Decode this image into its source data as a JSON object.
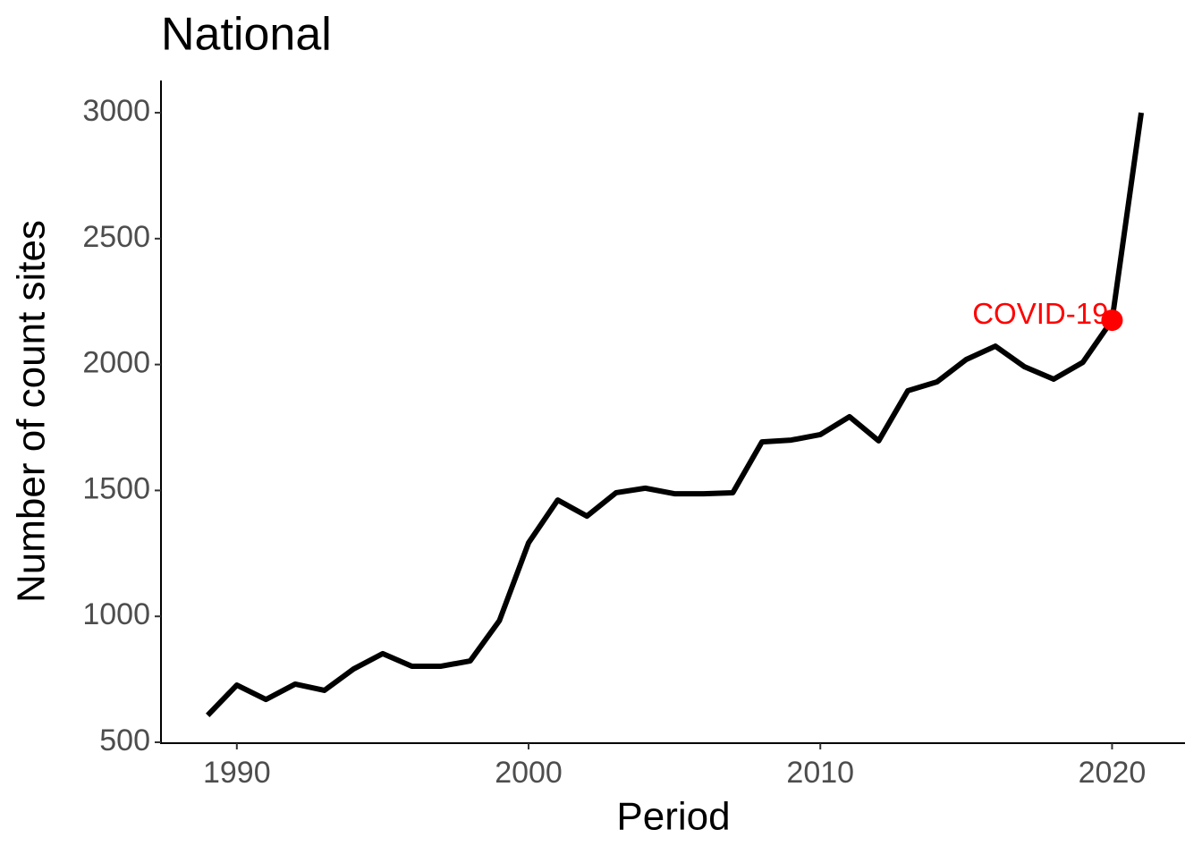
{
  "chart_data": {
    "type": "line",
    "title": "National",
    "x_label": "Period",
    "y_label": "Number of count sites",
    "x": [
      1989,
      1990,
      1991,
      1992,
      1993,
      1994,
      1995,
      1996,
      1997,
      1998,
      1999,
      2000,
      2001,
      2002,
      2003,
      2004,
      2005,
      2006,
      2007,
      2008,
      2009,
      2010,
      2011,
      2012,
      2013,
      2014,
      2015,
      2016,
      2017,
      2018,
      2019,
      2020,
      2021
    ],
    "series": [
      {
        "name": "National",
        "color": "#000000",
        "values": [
          607,
          727,
          670,
          731,
          706,
          791,
          852,
          802,
          802,
          823,
          983,
          1292,
          1462,
          1398,
          1491,
          1509,
          1487,
          1487,
          1491,
          1693,
          1700,
          1722,
          1793,
          1697,
          1896,
          1931,
          2020,
          2073,
          1991,
          1942,
          2009,
          2176,
          3000
        ]
      }
    ],
    "annotation": {
      "text": "COVID-19",
      "x": 2020,
      "y": 2176,
      "color": "#ff0000"
    },
    "xlim": [
      1987.4,
      2022.5
    ],
    "xticks": [
      1990,
      2000,
      2010,
      2020
    ],
    "ylim": [
      500,
      3128
    ],
    "yticks": [
      500,
      1000,
      1500,
      2000,
      2500,
      3000
    ],
    "grid": false
  }
}
